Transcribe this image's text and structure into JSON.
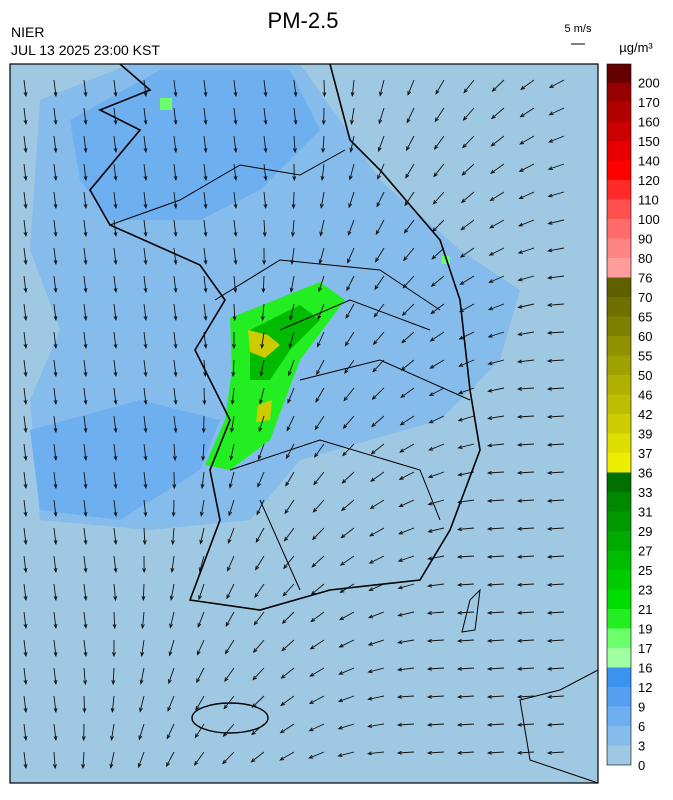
{
  "header": {
    "title": "PM-2.5",
    "source": "NIER",
    "datetime": "JUL 13 2025 23:00 KST",
    "vector_scale": "5 m/s",
    "unit": "µg/m³"
  },
  "colorbar": {
    "ticks": [
      0,
      3,
      6,
      9,
      12,
      16,
      17,
      19,
      21,
      23,
      25,
      27,
      29,
      31,
      33,
      36,
      37,
      39,
      42,
      46,
      50,
      55,
      60,
      65,
      70,
      76,
      80,
      90,
      100,
      110,
      120,
      140,
      150,
      160,
      170,
      200
    ],
    "colors": [
      "#9fc9e2",
      "#86bceb",
      "#6eaff0",
      "#559ff0",
      "#3a93ef",
      "#a0ffa0",
      "#6cff6c",
      "#22ee22",
      "#00dd00",
      "#00cc00",
      "#00bb00",
      "#00aa00",
      "#009900",
      "#008800",
      "#007000",
      "#eeee00",
      "#dede00",
      "#cccc00",
      "#bebe00",
      "#b0b000",
      "#a0a000",
      "#909000",
      "#808000",
      "#707000",
      "#606000",
      "#ff9c9c",
      "#ff8484",
      "#ff6a6a",
      "#ff5050",
      "#ff2a2a",
      "#ff0000",
      "#e80000",
      "#cc0000",
      "#b20000",
      "#960000",
      "#640000"
    ]
  }
}
